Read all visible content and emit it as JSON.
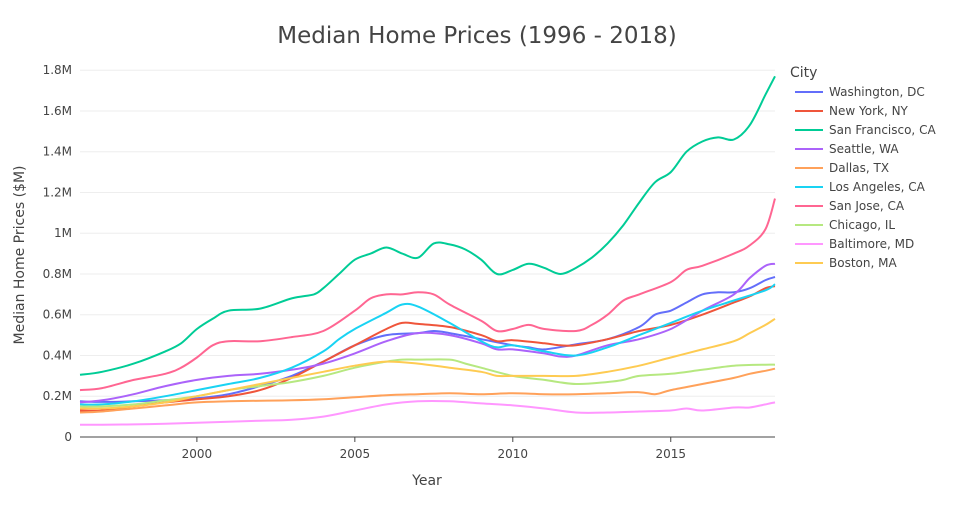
{
  "chart_data": {
    "type": "line",
    "title": "Median Home Prices (1996 - 2018)",
    "xlabel": "Year",
    "ylabel": "Median Home Prices ($M)",
    "legend_title": "City",
    "legend_position": "right",
    "grid": true,
    "xlim": [
      1996.3,
      2018.3
    ],
    "ylim": [
      0,
      1.85
    ],
    "x_ticks": [
      2000,
      2005,
      2010,
      2015
    ],
    "x_tick_labels": [
      "2000",
      "2005",
      "2010",
      "2015"
    ],
    "y_ticks": [
      0,
      0.2,
      0.4,
      0.6,
      0.8,
      1.0,
      1.2,
      1.4,
      1.6,
      1.8
    ],
    "y_tick_labels": [
      "0",
      "0.2M",
      "0.4M",
      "0.6M",
      "0.8M",
      "1M",
      "1.2M",
      "1.4M",
      "1.6M",
      "1.8M"
    ],
    "series": [
      {
        "name": "Washington, DC",
        "color": "#636efa",
        "points": [
          [
            1996.3,
            0.175
          ],
          [
            1997,
            0.172
          ],
          [
            1998,
            0.175
          ],
          [
            1999,
            0.18
          ],
          [
            2000,
            0.19
          ],
          [
            2001,
            0.21
          ],
          [
            2002,
            0.25
          ],
          [
            2003,
            0.3
          ],
          [
            2004,
            0.37
          ],
          [
            2005,
            0.45
          ],
          [
            2006,
            0.5
          ],
          [
            2007,
            0.51
          ],
          [
            2007.5,
            0.52
          ],
          [
            2008,
            0.51
          ],
          [
            2009,
            0.48
          ],
          [
            2010,
            0.45
          ],
          [
            2010.5,
            0.44
          ],
          [
            2011,
            0.43
          ],
          [
            2012,
            0.455
          ],
          [
            2013,
            0.48
          ],
          [
            2014,
            0.54
          ],
          [
            2014.5,
            0.6
          ],
          [
            2015,
            0.62
          ],
          [
            2015.5,
            0.66
          ],
          [
            2016,
            0.7
          ],
          [
            2016.5,
            0.71
          ],
          [
            2017,
            0.71
          ],
          [
            2017.5,
            0.73
          ],
          [
            2018,
            0.77
          ],
          [
            2018.3,
            0.785
          ]
        ]
      },
      {
        "name": "New York, NY",
        "color": "#ef553b",
        "points": [
          [
            1996.3,
            0.13
          ],
          [
            1997,
            0.13
          ],
          [
            1998,
            0.15
          ],
          [
            1999,
            0.17
          ],
          [
            2000,
            0.185
          ],
          [
            2001,
            0.2
          ],
          [
            2002,
            0.23
          ],
          [
            2003,
            0.29
          ],
          [
            2004,
            0.37
          ],
          [
            2005,
            0.45
          ],
          [
            2006,
            0.53
          ],
          [
            2006.5,
            0.56
          ],
          [
            2007,
            0.555
          ],
          [
            2008,
            0.54
          ],
          [
            2009,
            0.5
          ],
          [
            2009.5,
            0.47
          ],
          [
            2010,
            0.475
          ],
          [
            2011,
            0.46
          ],
          [
            2011.5,
            0.45
          ],
          [
            2012,
            0.45
          ],
          [
            2013,
            0.48
          ],
          [
            2014,
            0.52
          ],
          [
            2015,
            0.55
          ],
          [
            2016,
            0.6
          ],
          [
            2017,
            0.66
          ],
          [
            2017.5,
            0.69
          ],
          [
            2018,
            0.73
          ],
          [
            2018.3,
            0.74
          ]
        ]
      },
      {
        "name": "San Francisco, CA",
        "color": "#00cc96",
        "points": [
          [
            1996.3,
            0.305
          ],
          [
            1997,
            0.32
          ],
          [
            1998,
            0.36
          ],
          [
            1999,
            0.42
          ],
          [
            1999.5,
            0.46
          ],
          [
            2000,
            0.53
          ],
          [
            2000.5,
            0.58
          ],
          [
            2001,
            0.62
          ],
          [
            2002,
            0.63
          ],
          [
            2003,
            0.68
          ],
          [
            2003.7,
            0.7
          ],
          [
            2004,
            0.73
          ],
          [
            2004.5,
            0.8
          ],
          [
            2005,
            0.87
          ],
          [
            2005.5,
            0.9
          ],
          [
            2006,
            0.93
          ],
          [
            2006.5,
            0.9
          ],
          [
            2007,
            0.88
          ],
          [
            2007.5,
            0.95
          ],
          [
            2008,
            0.945
          ],
          [
            2008.5,
            0.92
          ],
          [
            2009,
            0.87
          ],
          [
            2009.5,
            0.8
          ],
          [
            2010,
            0.82
          ],
          [
            2010.5,
            0.85
          ],
          [
            2011,
            0.83
          ],
          [
            2011.5,
            0.8
          ],
          [
            2012,
            0.83
          ],
          [
            2012.5,
            0.88
          ],
          [
            2013,
            0.95
          ],
          [
            2013.5,
            1.04
          ],
          [
            2014,
            1.15
          ],
          [
            2014.5,
            1.25
          ],
          [
            2015,
            1.3
          ],
          [
            2015.5,
            1.4
          ],
          [
            2016,
            1.45
          ],
          [
            2016.5,
            1.47
          ],
          [
            2017,
            1.46
          ],
          [
            2017.5,
            1.53
          ],
          [
            2018,
            1.68
          ],
          [
            2018.3,
            1.77
          ]
        ]
      },
      {
        "name": "Seattle, WA",
        "color": "#ab63fa",
        "points": [
          [
            1996.3,
            0.17
          ],
          [
            1997,
            0.18
          ],
          [
            1998,
            0.21
          ],
          [
            1999,
            0.25
          ],
          [
            2000,
            0.28
          ],
          [
            2001,
            0.3
          ],
          [
            2002,
            0.31
          ],
          [
            2003,
            0.33
          ],
          [
            2004,
            0.36
          ],
          [
            2005,
            0.41
          ],
          [
            2006,
            0.47
          ],
          [
            2007,
            0.51
          ],
          [
            2008,
            0.5
          ],
          [
            2009,
            0.46
          ],
          [
            2009.5,
            0.43
          ],
          [
            2010,
            0.43
          ],
          [
            2011,
            0.41
          ],
          [
            2011.5,
            0.395
          ],
          [
            2012,
            0.4
          ],
          [
            2013,
            0.45
          ],
          [
            2014,
            0.48
          ],
          [
            2015,
            0.53
          ],
          [
            2016,
            0.62
          ],
          [
            2017,
            0.7
          ],
          [
            2017.5,
            0.78
          ],
          [
            2018,
            0.84
          ],
          [
            2018.3,
            0.85
          ]
        ]
      },
      {
        "name": "Dallas, TX",
        "color": "#ffa15a",
        "points": [
          [
            1996.3,
            0.12
          ],
          [
            1997,
            0.125
          ],
          [
            1998,
            0.14
          ],
          [
            1999,
            0.155
          ],
          [
            2000,
            0.17
          ],
          [
            2001,
            0.175
          ],
          [
            2002,
            0.178
          ],
          [
            2003,
            0.18
          ],
          [
            2004,
            0.185
          ],
          [
            2005,
            0.195
          ],
          [
            2006,
            0.205
          ],
          [
            2007,
            0.21
          ],
          [
            2008,
            0.215
          ],
          [
            2009,
            0.21
          ],
          [
            2010,
            0.215
          ],
          [
            2011,
            0.21
          ],
          [
            2012,
            0.21
          ],
          [
            2013,
            0.215
          ],
          [
            2014,
            0.22
          ],
          [
            2014.5,
            0.21
          ],
          [
            2015,
            0.23
          ],
          [
            2016,
            0.26
          ],
          [
            2017,
            0.29
          ],
          [
            2017.5,
            0.31
          ],
          [
            2018,
            0.325
          ],
          [
            2018.3,
            0.335
          ]
        ]
      },
      {
        "name": "Los Angeles, CA",
        "color": "#19d3f3",
        "points": [
          [
            1996.3,
            0.16
          ],
          [
            1997,
            0.16
          ],
          [
            1998,
            0.175
          ],
          [
            1999,
            0.2
          ],
          [
            2000,
            0.23
          ],
          [
            2001,
            0.26
          ],
          [
            2002,
            0.29
          ],
          [
            2003,
            0.34
          ],
          [
            2004,
            0.42
          ],
          [
            2004.5,
            0.48
          ],
          [
            2005,
            0.53
          ],
          [
            2006,
            0.61
          ],
          [
            2006.5,
            0.65
          ],
          [
            2007,
            0.64
          ],
          [
            2008,
            0.56
          ],
          [
            2009,
            0.47
          ],
          [
            2009.5,
            0.44
          ],
          [
            2010,
            0.45
          ],
          [
            2011,
            0.42
          ],
          [
            2012,
            0.4
          ],
          [
            2013,
            0.44
          ],
          [
            2014,
            0.5
          ],
          [
            2015,
            0.56
          ],
          [
            2016,
            0.62
          ],
          [
            2017,
            0.67
          ],
          [
            2018,
            0.72
          ],
          [
            2018.3,
            0.75
          ]
        ]
      },
      {
        "name": "San Jose, CA",
        "color": "#ff6692",
        "points": [
          [
            1996.3,
            0.23
          ],
          [
            1997,
            0.24
          ],
          [
            1998,
            0.28
          ],
          [
            1999,
            0.31
          ],
          [
            1999.5,
            0.34
          ],
          [
            2000,
            0.39
          ],
          [
            2000.5,
            0.45
          ],
          [
            2001,
            0.47
          ],
          [
            2002,
            0.47
          ],
          [
            2003,
            0.49
          ],
          [
            2004,
            0.52
          ],
          [
            2005,
            0.62
          ],
          [
            2005.5,
            0.68
          ],
          [
            2006,
            0.7
          ],
          [
            2006.5,
            0.7
          ],
          [
            2007,
            0.71
          ],
          [
            2007.5,
            0.7
          ],
          [
            2008,
            0.65
          ],
          [
            2009,
            0.57
          ],
          [
            2009.5,
            0.52
          ],
          [
            2010,
            0.53
          ],
          [
            2010.5,
            0.55
          ],
          [
            2011,
            0.53
          ],
          [
            2012,
            0.52
          ],
          [
            2012.5,
            0.55
          ],
          [
            2013,
            0.6
          ],
          [
            2013.5,
            0.67
          ],
          [
            2014,
            0.7
          ],
          [
            2015,
            0.76
          ],
          [
            2015.5,
            0.82
          ],
          [
            2016,
            0.84
          ],
          [
            2017,
            0.9
          ],
          [
            2017.5,
            0.94
          ],
          [
            2018,
            1.02
          ],
          [
            2018.3,
            1.17
          ]
        ]
      },
      {
        "name": "Chicago, IL",
        "color": "#b6e880",
        "points": [
          [
            1996.3,
            0.15
          ],
          [
            1997,
            0.15
          ],
          [
            1998,
            0.16
          ],
          [
            1999,
            0.18
          ],
          [
            2000,
            0.2
          ],
          [
            2001,
            0.23
          ],
          [
            2002,
            0.25
          ],
          [
            2003,
            0.27
          ],
          [
            2004,
            0.3
          ],
          [
            2005,
            0.34
          ],
          [
            2006,
            0.37
          ],
          [
            2006.5,
            0.38
          ],
          [
            2007,
            0.38
          ],
          [
            2008,
            0.38
          ],
          [
            2008.5,
            0.36
          ],
          [
            2009,
            0.34
          ],
          [
            2010,
            0.3
          ],
          [
            2011,
            0.28
          ],
          [
            2012,
            0.26
          ],
          [
            2013,
            0.27
          ],
          [
            2013.5,
            0.28
          ],
          [
            2014,
            0.3
          ],
          [
            2015,
            0.31
          ],
          [
            2016,
            0.33
          ],
          [
            2017,
            0.35
          ],
          [
            2018,
            0.355
          ],
          [
            2018.3,
            0.355
          ]
        ]
      },
      {
        "name": "Baltimore, MD",
        "color": "#ff97ff",
        "points": [
          [
            1996.3,
            0.06
          ],
          [
            1997,
            0.06
          ],
          [
            1998,
            0.062
          ],
          [
            1999,
            0.065
          ],
          [
            2000,
            0.07
          ],
          [
            2001,
            0.075
          ],
          [
            2002,
            0.08
          ],
          [
            2003,
            0.085
          ],
          [
            2004,
            0.1
          ],
          [
            2005,
            0.13
          ],
          [
            2006,
            0.16
          ],
          [
            2007,
            0.175
          ],
          [
            2008,
            0.175
          ],
          [
            2009,
            0.165
          ],
          [
            2010,
            0.155
          ],
          [
            2011,
            0.14
          ],
          [
            2012,
            0.12
          ],
          [
            2013,
            0.12
          ],
          [
            2014,
            0.125
          ],
          [
            2015,
            0.13
          ],
          [
            2015.5,
            0.14
          ],
          [
            2016,
            0.13
          ],
          [
            2017,
            0.145
          ],
          [
            2017.5,
            0.145
          ],
          [
            2018,
            0.16
          ],
          [
            2018.3,
            0.17
          ]
        ]
      },
      {
        "name": "Boston, MA",
        "color": "#fecb52",
        "points": [
          [
            1996.3,
            0.14
          ],
          [
            1997,
            0.14
          ],
          [
            1998,
            0.15
          ],
          [
            1999,
            0.17
          ],
          [
            2000,
            0.2
          ],
          [
            2001,
            0.23
          ],
          [
            2002,
            0.26
          ],
          [
            2003,
            0.29
          ],
          [
            2004,
            0.32
          ],
          [
            2005,
            0.35
          ],
          [
            2006,
            0.37
          ],
          [
            2007,
            0.36
          ],
          [
            2008,
            0.34
          ],
          [
            2009,
            0.32
          ],
          [
            2009.5,
            0.3
          ],
          [
            2010,
            0.3
          ],
          [
            2011,
            0.3
          ],
          [
            2012,
            0.3
          ],
          [
            2013,
            0.32
          ],
          [
            2014,
            0.35
          ],
          [
            2015,
            0.39
          ],
          [
            2016,
            0.43
          ],
          [
            2017,
            0.47
          ],
          [
            2017.5,
            0.51
          ],
          [
            2018,
            0.55
          ],
          [
            2018.3,
            0.58
          ]
        ]
      }
    ]
  }
}
